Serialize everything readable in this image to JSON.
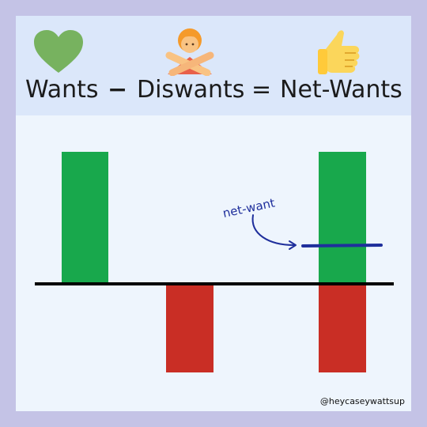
{
  "equation": {
    "wants": "Wants",
    "minus": "−",
    "diswants": "Diswants",
    "equals": "=",
    "net_wants": "Net-Wants"
  },
  "icons": {
    "wants": "green-heart-icon",
    "diswants": "person-gesturing-no-icon",
    "net_wants": "thumbs-up-icon"
  },
  "diagram": {
    "annotation": "net-want",
    "bars": [
      {
        "group": "wants",
        "value": 1.0,
        "color": "#18a84c"
      },
      {
        "group": "diswants",
        "value": -0.67,
        "color": "#c92e25"
      },
      {
        "group": "net_wants_positive",
        "value": 1.0,
        "color": "#18a84c"
      },
      {
        "group": "net_wants_negative",
        "value": -0.67,
        "color": "#c92e25"
      }
    ],
    "net_want_value": 0.3,
    "annotation_color": "#1f2f9c"
  },
  "watermark": "@heycaseywattsup"
}
